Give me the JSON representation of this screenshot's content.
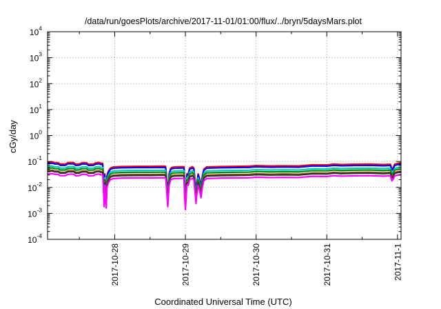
{
  "chart_data": {
    "type": "line",
    "title": "/data/run/goesPlots/archive/2017-11-01/01:00/flux/../bryn/5daysMars.plot",
    "xlabel": "Coordinated Universal Time (UTC)",
    "ylabel": "cGy/day",
    "yscale": "log",
    "ylim": [
      0.0001,
      10000
    ],
    "xlim": [
      -1.95,
      3.05
    ],
    "grid": true,
    "legend": "none",
    "y_ticks": [
      {
        "value": 0.0001,
        "base": "10",
        "exp": "-4"
      },
      {
        "value": 0.001,
        "base": "10",
        "exp": "-3"
      },
      {
        "value": 0.01,
        "base": "10",
        "exp": "-2"
      },
      {
        "value": 0.1,
        "base": "10",
        "exp": "-1"
      },
      {
        "value": 1,
        "base": "10",
        "exp": "0"
      },
      {
        "value": 10,
        "base": "10",
        "exp": "1"
      },
      {
        "value": 100,
        "base": "10",
        "exp": "2"
      },
      {
        "value": 1000,
        "base": "10",
        "exp": "3"
      },
      {
        "value": 10000,
        "base": "10",
        "exp": "4"
      }
    ],
    "x_ticks": [
      {
        "value": -1,
        "label": "2017-10-28"
      },
      {
        "value": 0,
        "label": "2017-10-29"
      },
      {
        "value": 1,
        "label": "2017-10-30"
      },
      {
        "value": 2,
        "label": "2017-10-31"
      },
      {
        "value": 3,
        "label": "2017-11-1"
      }
    ],
    "x_minor_ticks": [
      -1.5,
      -0.5,
      0.5,
      1.5,
      2.5
    ],
    "series": [
      {
        "color": "#ff0000",
        "factor": 1.12
      },
      {
        "color": "#0000ff",
        "factor": 1.0
      },
      {
        "color": "#00c8c8",
        "factor": 0.78
      },
      {
        "color": "#008800",
        "factor": 0.66
      },
      {
        "color": "#a05010",
        "factor": 0.54
      },
      {
        "color": "#303030",
        "factor": 0.5
      },
      {
        "color": "#ff00ff",
        "factor": 0.4
      }
    ],
    "baseline": [
      [
        -1.95,
        0.082
      ],
      [
        -1.88,
        0.086
      ],
      [
        -1.85,
        0.08
      ],
      [
        -1.8,
        0.08
      ],
      [
        -1.77,
        0.071
      ],
      [
        -1.7,
        0.071
      ],
      [
        -1.66,
        0.081
      ],
      [
        -1.58,
        0.081
      ],
      [
        -1.55,
        0.07
      ],
      [
        -1.5,
        0.072
      ],
      [
        -1.46,
        0.08
      ],
      [
        -1.4,
        0.08
      ],
      [
        -1.37,
        0.07
      ],
      [
        -1.3,
        0.071
      ],
      [
        -1.27,
        0.079
      ],
      [
        -1.22,
        0.082
      ],
      [
        -1.2,
        0.077
      ],
      [
        -1.17,
        0.076
      ],
      [
        -1.16,
        0.03
      ],
      [
        -1.15,
        0.0045
      ],
      [
        -1.14,
        0.03
      ],
      [
        -1.13,
        0.01
      ],
      [
        -1.12,
        0.004
      ],
      [
        -1.11,
        0.025
      ],
      [
        -1.09,
        0.038
      ],
      [
        -1.06,
        0.05
      ],
      [
        -1.02,
        0.055
      ],
      [
        -0.9,
        0.057
      ],
      [
        -0.7,
        0.058
      ],
      [
        -0.5,
        0.058
      ],
      [
        -0.3,
        0.059
      ],
      [
        -0.28,
        0.058
      ],
      [
        -0.27,
        0.03
      ],
      [
        -0.26,
        0.012
      ],
      [
        -0.25,
        0.0045
      ],
      [
        -0.24,
        0.012
      ],
      [
        -0.23,
        0.03
      ],
      [
        -0.21,
        0.048
      ],
      [
        -0.19,
        0.053
      ],
      [
        -0.15,
        0.055
      ],
      [
        -0.05,
        0.056
      ],
      [
        -0.02,
        0.056
      ],
      [
        -0.01,
        0.01
      ],
      [
        0.0,
        0.0035
      ],
      [
        0.01,
        0.01
      ],
      [
        0.02,
        0.03
      ],
      [
        0.04,
        0.03
      ],
      [
        0.06,
        0.05
      ],
      [
        0.1,
        0.056
      ],
      [
        0.12,
        0.05
      ],
      [
        0.14,
        0.013
      ],
      [
        0.15,
        0.006
      ],
      [
        0.16,
        0.013
      ],
      [
        0.18,
        0.03
      ],
      [
        0.2,
        0.02
      ],
      [
        0.22,
        0.01
      ],
      [
        0.24,
        0.025
      ],
      [
        0.26,
        0.045
      ],
      [
        0.3,
        0.055
      ],
      [
        0.5,
        0.057
      ],
      [
        0.7,
        0.058
      ],
      [
        0.9,
        0.059
      ],
      [
        1.0,
        0.062
      ],
      [
        1.2,
        0.06
      ],
      [
        1.4,
        0.061
      ],
      [
        1.6,
        0.06
      ],
      [
        1.8,
        0.067
      ],
      [
        2.0,
        0.066
      ],
      [
        2.1,
        0.071
      ],
      [
        2.2,
        0.068
      ],
      [
        2.4,
        0.07
      ],
      [
        2.6,
        0.071
      ],
      [
        2.8,
        0.068
      ],
      [
        2.9,
        0.07
      ],
      [
        2.92,
        0.045
      ],
      [
        2.94,
        0.052
      ],
      [
        2.96,
        0.07
      ],
      [
        3.0,
        0.075
      ],
      [
        3.05,
        0.078
      ]
    ]
  }
}
